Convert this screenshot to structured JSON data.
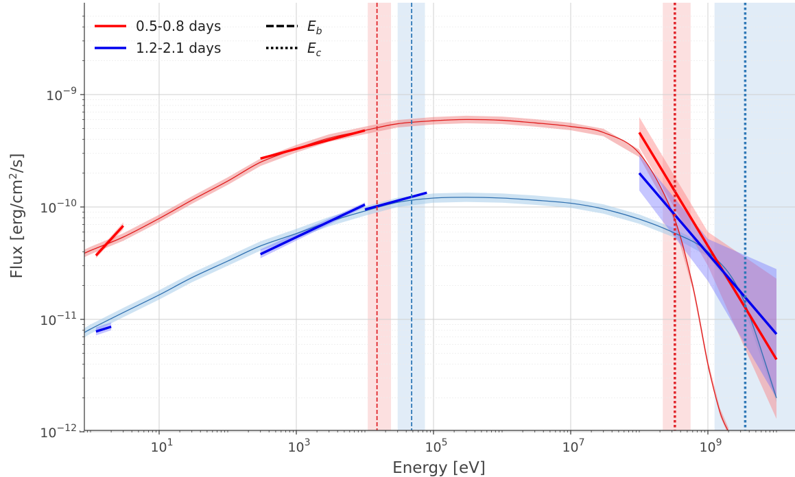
{
  "chart_data": {
    "type": "line",
    "xlabel": "Energy [eV]",
    "ylabel": "Flux [erg/cm²/s]",
    "x_scale": "log",
    "y_scale": "log",
    "xlim": [
      0.7,
      20000000000.0
    ],
    "ylim": [
      1e-12,
      6e-09
    ],
    "grid": true,
    "legend_position": "top-left",
    "x_ticks": [
      {
        "value": 10,
        "base": "10",
        "exp": "1"
      },
      {
        "value": 1000,
        "base": "10",
        "exp": "3"
      },
      {
        "value": 100000,
        "base": "10",
        "exp": "5"
      },
      {
        "value": 10000000,
        "base": "10",
        "exp": "7"
      },
      {
        "value": 1000000000,
        "base": "10",
        "exp": "9"
      }
    ],
    "y_ticks": [
      {
        "value": 1e-12,
        "base": "10",
        "exp": "−12"
      },
      {
        "value": 1e-11,
        "base": "10",
        "exp": "−11"
      },
      {
        "value": 1e-10,
        "base": "10",
        "exp": "−10"
      },
      {
        "value": 1e-09,
        "base": "10",
        "exp": "−9"
      }
    ],
    "legend": [
      {
        "label": "0.5-0.8 days",
        "color": "#ff0000",
        "style": "solid"
      },
      {
        "label": "1.2-2.1 days",
        "color": "#0000ee",
        "style": "solid"
      },
      {
        "label_base": "E",
        "label_sub": "b",
        "color": "#000000",
        "style": "dashed"
      },
      {
        "label_base": "E",
        "label_sub": "c",
        "color": "#000000",
        "style": "dotted"
      }
    ],
    "series": [
      {
        "name": "0.5-0.8 days",
        "color": "#ff0000",
        "model_color": "#e01a1a",
        "band_color": "#f08080",
        "model_curve": {
          "x": [
            0.7,
            1,
            3,
            10,
            30,
            100,
            300,
            1000,
            3000,
            10000,
            30000,
            100000,
            300000,
            1000000,
            3000000,
            10000000,
            30000000,
            100000000,
            300000000,
            600000000,
            1000000000,
            1500000000,
            2000000000
          ],
          "y": [
            3.7e-11,
            4.1e-11,
            5.4e-11,
            7.9e-11,
            1.15e-10,
            1.7e-10,
            2.5e-10,
            3.3e-10,
            4.1e-10,
            4.8e-10,
            5.5e-10,
            5.85e-10,
            6e-10,
            5.9e-10,
            5.6e-10,
            5.2e-10,
            4.6e-10,
            3e-10,
            9e-11,
            2e-11,
            4e-12,
            1.5e-12,
            1e-12
          ],
          "band_factor": 1.08
        },
        "fit_segments": [
          {
            "x": [
              1.2,
              3.0
            ],
            "y": [
              3.7e-11,
              6.8e-11
            ]
          },
          {
            "x": [
              300,
              10000
            ],
            "y": [
              2.7e-10,
              4.8e-10
            ]
          },
          {
            "x": [
              100000000,
              10000000000
            ],
            "y": [
              4.6e-10,
              4.4e-12
            ]
          }
        ],
        "fit_bands": [
          {
            "x": [
              1.2,
              3.0
            ],
            "ylow": [
              3.5e-11,
              6.3e-11
            ],
            "yhigh": [
              3.9e-11,
              7.3e-11
            ]
          },
          {
            "x": [
              100000000,
              1000000000,
              10000000000
            ],
            "ylow": [
              3.4e-10,
              3e-11,
              1.3e-12
            ],
            "yhigh": [
              6.3e-10,
              6e-11,
              2.3e-11
            ]
          }
        ],
        "E_b": {
          "value": 15000,
          "range": [
            11000,
            24000
          ]
        },
        "E_c": {
          "value": 330000000,
          "range": [
            220000000,
            560000000
          ]
        }
      },
      {
        "name": "1.2-2.1 days",
        "color": "#0000ee",
        "model_color": "#3070b0",
        "band_color": "#9ec8e8",
        "model_curve": {
          "x": [
            0.7,
            1,
            3,
            10,
            30,
            100,
            300,
            1000,
            3000,
            10000,
            30000,
            100000,
            300000,
            1000000,
            3000000,
            10000000,
            30000000,
            100000000,
            300000000,
            1000000000,
            3000000000,
            10000000000
          ],
          "y": [
            7.2e-12,
            8.2e-12,
            1.15e-11,
            1.65e-11,
            2.35e-11,
            3.3e-11,
            4.5e-11,
            5.8e-11,
            7.4e-11,
            9.2e-11,
            1.1e-10,
            1.2e-10,
            1.22e-10,
            1.2e-10,
            1.15e-10,
            1.08e-10,
            9.6e-11,
            7.8e-11,
            6e-11,
            4e-11,
            1.7e-11,
            2e-12
          ],
          "band_factor": 1.1
        },
        "fit_segments": [
          {
            "x": [
              1.2,
              2.0
            ],
            "y": [
              7.8e-12,
              8.6e-12
            ]
          },
          {
            "x": [
              300,
              10000
            ],
            "y": [
              3.8e-11,
              1.05e-10
            ]
          },
          {
            "x": [
              10000,
              80000
            ],
            "y": [
              9.5e-11,
              1.34e-10
            ]
          },
          {
            "x": [
              100000000,
              10000000000
            ],
            "y": [
              2e-10,
              7.4e-12
            ]
          }
        ],
        "fit_bands": [
          {
            "x": [
              1.2,
              2.0
            ],
            "ylow": [
              7.2e-12,
              8e-12
            ],
            "yhigh": [
              8.5e-12,
              9.4e-12
            ]
          },
          {
            "x": [
              300,
              10000
            ],
            "ylow": [
              3.5e-11,
              1e-10
            ],
            "yhigh": [
              4.2e-11,
              1.1e-10
            ]
          },
          {
            "x": [
              100000000,
              1000000000,
              10000000000
            ],
            "ylow": [
              1.4e-10,
              2.2e-11,
              2e-12
            ],
            "yhigh": [
              2.9e-10,
              5.2e-11,
              2.8e-11
            ]
          }
        ],
        "E_b": {
          "value": 48000,
          "range": [
            30000,
            75000
          ]
        },
        "E_c": {
          "value": 3500000000,
          "range": [
            1250000000,
            25000000000
          ]
        }
      }
    ]
  }
}
